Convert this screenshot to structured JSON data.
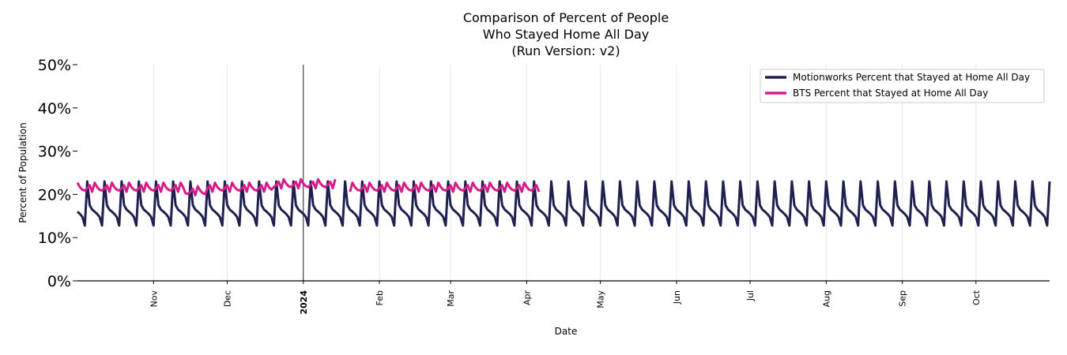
{
  "chart_data": {
    "type": "line",
    "title_lines": [
      "Comparison of Percent of People",
      "Who Stayed Home All Day",
      "(Run Version: v2)"
    ],
    "xlabel": "Date",
    "ylabel": "Percent of Population",
    "xlim": [
      "2023-10-01",
      "2024-10-31"
    ],
    "ylim": [
      0,
      50
    ],
    "y_ticks": [
      "0%",
      "10%",
      "20%",
      "30%",
      "40%",
      "50%"
    ],
    "x_ticks": [
      {
        "date": "2023-11-01",
        "label": "Nov"
      },
      {
        "date": "2023-12-01",
        "label": "Dec"
      },
      {
        "date": "2024-01-01",
        "label": "2024"
      },
      {
        "date": "2024-02-01",
        "label": "Feb"
      },
      {
        "date": "2024-03-01",
        "label": "Mar"
      },
      {
        "date": "2024-04-01",
        "label": "Apr"
      },
      {
        "date": "2024-05-01",
        "label": "May"
      },
      {
        "date": "2024-06-01",
        "label": "Jun"
      },
      {
        "date": "2024-07-01",
        "label": "Jul"
      },
      {
        "date": "2024-08-01",
        "label": "Aug"
      },
      {
        "date": "2024-09-01",
        "label": "Sep"
      },
      {
        "date": "2024-10-01",
        "label": "Oct"
      }
    ],
    "grid": "vertical",
    "reference_line": "2024-01-01",
    "legend_position": "top-right",
    "series": [
      {
        "name": "Motionworks Percent that Stayed at Home All Day",
        "color": "#1f2050",
        "start": "2023-10-01",
        "end": "2024-10-31",
        "weekly_pattern": [
          23.0,
          17.5,
          16.5,
          16.0,
          15.5,
          14.8,
          12.8
        ],
        "first_peak": "2023-10-05",
        "peak_overrides": {
          "2023-11-26": 24.5,
          "2023-12-31": 25.3,
          "2024-01-07": 24.5,
          "2024-01-21": 24.5,
          "2024-06-02": 23.8,
          "2024-06-30": 23.6
        }
      },
      {
        "name": "BTS Percent that Stayed at Home All Day",
        "color": "#d81b8a",
        "start": "2023-10-01",
        "end": "2024-04-06",
        "gap": [
          "2024-01-15",
          "2024-01-19"
        ],
        "baseline": 21.5,
        "weekly_pattern": [
          1.2,
          0.2,
          -0.4,
          -0.6,
          -0.1,
          0.6,
          -0.9
        ],
        "level_adjustments": [
          {
            "from": "2023-12-20",
            "to": "2024-01-14",
            "delta": 0.8
          },
          {
            "from": "2023-11-14",
            "to": "2023-11-22",
            "delta": -0.8
          }
        ]
      }
    ]
  }
}
